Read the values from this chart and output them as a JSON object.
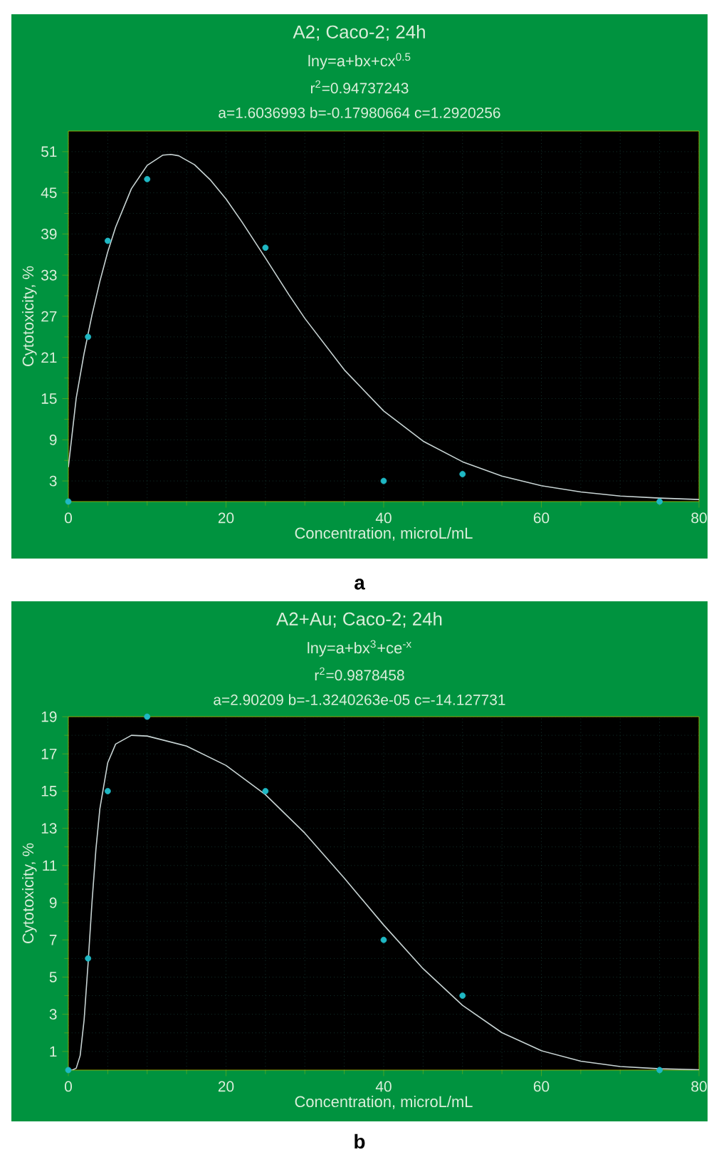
{
  "chart_data": [
    {
      "type": "scatter",
      "title": "A2; Caco-2; 24h",
      "subtitle": "lny=a+bx+cx$^{0.5}$",
      "xlabel": "Concentration, microL/mL",
      "ylabel": "Cytotoxicity, %",
      "annotations": [
        "r$^{2}$=0.94737243",
        "a=1.6036993 b=-0.17980664  c=1.2920256",
        "a"
      ],
      "xlim": [
        0,
        80
      ],
      "xticks": [
        0,
        20,
        40,
        60,
        80
      ],
      "ylim": [
        0,
        54
      ],
      "yticks": [
        3,
        9,
        15,
        21,
        27,
        33,
        39,
        45,
        51
      ],
      "grid": true,
      "x": [
        0,
        2.5,
        5,
        10,
        25,
        40,
        50,
        75
      ],
      "series": [
        {
          "color": "#1fb8c4",
          "values": [
            0,
            24,
            38,
            47,
            37,
            3,
            4,
            0
          ]
        },
        {
          "type": "line",
          "color": "#c8d4d4",
          "x": [
            0,
            1,
            2,
            3,
            4,
            5,
            6,
            8,
            10,
            12,
            13,
            14,
            16,
            18,
            20,
            22,
            25,
            28,
            30,
            35,
            40,
            45,
            50,
            55,
            60,
            65,
            70,
            75,
            80
          ],
          "values": [
            5,
            15.1,
            21.6,
            27.2,
            32.1,
            36.4,
            40.0,
            45.6,
            49.0,
            50.5,
            50.6,
            50.4,
            49.1,
            46.9,
            44.1,
            40.8,
            35.5,
            30.1,
            26.7,
            19.2,
            13.2,
            8.8,
            5.8,
            3.7,
            2.3,
            1.4,
            0.8,
            0.5,
            0.3
          ]
        }
      ]
    },
    {
      "type": "scatter",
      "title": "A2+Au; Caco-2; 24h",
      "subtitle": "lny=a+bx$^{3}$+ce$^{-x}$",
      "xlabel": "Concentration, microL/mL",
      "ylabel": "Cytotoxicity, %",
      "annotations": [
        "r$^{2}$=0.9878458",
        "a=2.90209 b=-1.3240263e-05  c=-14.127731",
        "b"
      ],
      "xlim": [
        0,
        80
      ],
      "xticks": [
        0,
        20,
        40,
        60,
        80
      ],
      "ylim": [
        0,
        19
      ],
      "yticks": [
        1,
        3,
        5,
        7,
        9,
        11,
        13,
        15,
        17,
        19
      ],
      "grid": true,
      "x": [
        0,
        2.5,
        5,
        10,
        25,
        40,
        50,
        75
      ],
      "series": [
        {
          "color": "#1fb8c4",
          "values": [
            0,
            6,
            15,
            19,
            15,
            7,
            4,
            0
          ]
        },
        {
          "type": "line",
          "color": "#c8d4d4",
          "x": [
            0,
            0.5,
            1,
            1.5,
            2,
            2.5,
            3,
            3.5,
            4,
            5,
            6,
            8,
            10,
            15,
            20,
            25,
            30,
            35,
            40,
            45,
            50,
            55,
            60,
            65,
            70,
            75,
            80
          ],
          "values": [
            0,
            0,
            0.1,
            0.78,
            2.69,
            5.71,
            9.01,
            11.88,
            14.05,
            16.53,
            17.53,
            18.0,
            17.96,
            17.42,
            16.38,
            14.81,
            12.74,
            10.32,
            7.8,
            5.45,
            3.48,
            2.01,
            1.04,
            0.48,
            0.19,
            0.07,
            0.02
          ]
        }
      ]
    }
  ]
}
